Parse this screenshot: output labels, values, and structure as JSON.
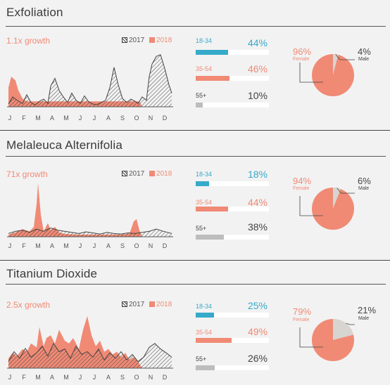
{
  "colors": {
    "y2018": "#f08a75",
    "y2017": "#444444",
    "age_18_34": "#35aac9",
    "age_35_54": "#f08a75",
    "age_55_plus": "#bdbdbd",
    "female": "#f08a75",
    "male": "#d8d5d0"
  },
  "months": [
    "J",
    "F",
    "M",
    "A",
    "M",
    "J",
    "J",
    "A",
    "S",
    "O",
    "N",
    "D"
  ],
  "legend": {
    "y2017": "2017",
    "y2018": "2018"
  },
  "sections": [
    {
      "title": "Exfoliation",
      "growth": "1.1x growth",
      "ages": [
        {
          "label": "18-34",
          "pct": "44%"
        },
        {
          "label": "35-54",
          "pct": "46%"
        },
        {
          "label": "55+",
          "pct": "10%"
        }
      ],
      "female": {
        "pct": "96%",
        "label": "Female"
      },
      "male": {
        "pct": "4%",
        "label": "Male"
      }
    },
    {
      "title": "Melaleuca Alternifolia",
      "growth": "71x growth",
      "ages": [
        {
          "label": "18-34",
          "pct": "18%"
        },
        {
          "label": "35-54",
          "pct": "44%"
        },
        {
          "label": "55+",
          "pct": "38%"
        }
      ],
      "female": {
        "pct": "94%",
        "label": "Female"
      },
      "male": {
        "pct": "6%",
        "label": "Male"
      }
    },
    {
      "title": "Titanium Dioxide",
      "growth": "2.5x growth",
      "ages": [
        {
          "label": "18-34",
          "pct": "25%"
        },
        {
          "label": "35-54",
          "pct": "49%"
        },
        {
          "label": "55+",
          "pct": "26%"
        }
      ],
      "female": {
        "pct": "79%",
        "label": "Female"
      },
      "male": {
        "pct": "21%",
        "label": "Male"
      }
    }
  ],
  "chart_data": [
    {
      "type": "area",
      "title": "Exfoliation",
      "categories": [
        "J",
        "F",
        "M",
        "A",
        "M",
        "J",
        "J",
        "A",
        "S",
        "O",
        "N",
        "D"
      ],
      "ylim": [
        0,
        100
      ],
      "series": [
        {
          "name": "2017",
          "x": [
            0,
            0.3,
            0.6,
            1.0,
            1.3,
            1.6,
            1.9,
            2.2,
            2.5,
            2.8,
            3.0,
            3.3,
            3.6,
            3.9,
            4.2,
            4.5,
            4.8,
            5.1,
            5.4,
            5.7,
            6.0,
            6.3,
            6.6,
            6.9,
            7.2,
            7.5,
            7.8,
            8.1,
            8.4,
            8.7,
            9.0,
            9.2,
            9.5,
            9.8,
            10.0,
            10.2,
            10.5,
            10.8,
            11.1,
            11.4,
            11.6
          ],
          "values": [
            5,
            18,
            12,
            6,
            22,
            8,
            3,
            10,
            14,
            6,
            38,
            52,
            30,
            18,
            8,
            25,
            12,
            6,
            20,
            9,
            5,
            4,
            8,
            12,
            35,
            72,
            40,
            15,
            8,
            14,
            10,
            6,
            18,
            12,
            55,
            78,
            92,
            95,
            70,
            40,
            25
          ]
        },
        {
          "name": "2018",
          "x": [
            0,
            0.2,
            0.5,
            0.7,
            1.0,
            1.3,
            1.6,
            2.0,
            3.0,
            4.0,
            5.0,
            6.0,
            7.0,
            8.0,
            8.5,
            9.0,
            9.3,
            9.5
          ],
          "values": [
            35,
            55,
            48,
            30,
            15,
            10,
            10,
            10,
            10,
            10,
            10,
            10,
            10,
            10,
            10,
            10,
            10,
            0
          ]
        }
      ]
    },
    {
      "type": "area",
      "title": "Melaleuca Alternifolia",
      "categories": [
        "J",
        "F",
        "M",
        "A",
        "M",
        "J",
        "J",
        "A",
        "S",
        "O",
        "N",
        "D"
      ],
      "ylim": [
        0,
        100
      ],
      "series": [
        {
          "name": "2017",
          "x": [
            0,
            0.5,
            1.0,
            1.5,
            2.0,
            2.5,
            3.0,
            3.5,
            4.0,
            4.5,
            5.0,
            5.5,
            6.0,
            6.5,
            7.0,
            7.5,
            8.0,
            8.5,
            9.0,
            9.5,
            10.0,
            10.5,
            11.0,
            11.6
          ],
          "values": [
            6,
            10,
            12,
            8,
            14,
            10,
            16,
            12,
            10,
            8,
            6,
            9,
            7,
            5,
            8,
            6,
            5,
            7,
            6,
            8,
            10,
            14,
            10,
            6
          ]
        },
        {
          "name": "2018",
          "x": [
            0,
            0.5,
            1.0,
            1.5,
            1.8,
            2.0,
            2.1,
            2.3,
            2.5,
            2.8,
            3.0,
            3.3,
            3.6,
            4.0,
            5.0,
            6.0,
            7.0,
            8.0,
            8.6,
            8.9,
            9.1,
            9.3,
            9.5
          ],
          "values": [
            4,
            8,
            14,
            10,
            18,
            60,
            98,
            40,
            10,
            25,
            12,
            18,
            8,
            5,
            4,
            4,
            4,
            4,
            6,
            28,
            32,
            12,
            0
          ]
        }
      ]
    },
    {
      "type": "area",
      "title": "Titanium Dioxide",
      "categories": [
        "J",
        "F",
        "M",
        "A",
        "M",
        "J",
        "J",
        "A",
        "S",
        "O",
        "N",
        "D"
      ],
      "ylim": [
        0,
        100
      ],
      "series": [
        {
          "name": "2017",
          "x": [
            0,
            0.4,
            0.8,
            1.2,
            1.6,
            2.0,
            2.4,
            2.8,
            3.2,
            3.6,
            4.0,
            4.4,
            4.8,
            5.2,
            5.6,
            6.0,
            6.4,
            6.8,
            7.2,
            7.6,
            8.0,
            8.4,
            8.8,
            9.2,
            9.6,
            10.0,
            10.4,
            10.8,
            11.2,
            11.6
          ],
          "values": [
            12,
            30,
            18,
            36,
            20,
            28,
            40,
            22,
            45,
            30,
            35,
            18,
            40,
            25,
            30,
            20,
            35,
            15,
            28,
            18,
            30,
            15,
            25,
            12,
            20,
            38,
            45,
            35,
            28,
            20
          ]
        },
        {
          "name": "2018",
          "x": [
            0,
            0.3,
            0.6,
            1.0,
            1.3,
            1.6,
            2.0,
            2.2,
            2.5,
            2.7,
            3.0,
            3.3,
            3.6,
            4.0,
            4.3,
            4.6,
            5.0,
            5.3,
            5.6,
            5.9,
            6.2,
            6.5,
            6.8,
            7.1,
            7.4,
            7.7,
            8.0,
            8.3,
            8.6,
            8.9,
            9.2,
            9.5
          ],
          "values": [
            18,
            28,
            22,
            35,
            30,
            45,
            38,
            75,
            40,
            55,
            60,
            45,
            70,
            50,
            45,
            55,
            35,
            70,
            95,
            60,
            40,
            50,
            30,
            35,
            25,
            30,
            20,
            28,
            15,
            20,
            12,
            0
          ]
        }
      ]
    }
  ]
}
